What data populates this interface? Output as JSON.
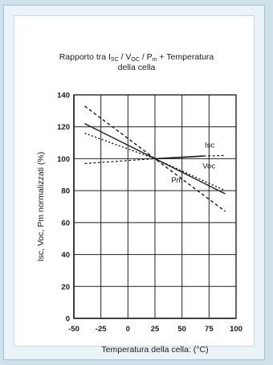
{
  "chart_data": {
    "type": "line",
    "title_line1_parts": [
      "Rapporto tra I",
      "SC",
      " / V",
      "OC",
      " / P",
      "m",
      " + Temperatura"
    ],
    "title_line2": "della cella",
    "xlabel": "Temperatura della cella: (°C)",
    "ylabel": "Isc, Voc, Pm normalizzati (%)",
    "xlim": [
      -50,
      100
    ],
    "ylim": [
      0,
      140
    ],
    "xticks": [
      -50,
      -25,
      0,
      25,
      50,
      75,
      100
    ],
    "xtick_labels": [
      "-50",
      "-25",
      "0",
      "25",
      "50",
      "75",
      "100"
    ],
    "yticks": [
      0,
      20,
      40,
      60,
      80,
      100,
      120,
      140
    ],
    "ytick_labels": [
      "0",
      "20",
      "40",
      "60",
      "80",
      "100",
      "120",
      "140"
    ],
    "grid": true,
    "series": [
      {
        "name": "Isc",
        "x": [
          -40,
          25,
          90
        ],
        "y": [
          97,
          100,
          102
        ],
        "dash": "solid-dashed"
      },
      {
        "name": "Voc",
        "x": [
          -40,
          25,
          90
        ],
        "y": [
          122,
          100,
          78
        ],
        "dash": "solid"
      },
      {
        "name": "Pm",
        "x": [
          -40,
          25,
          90
        ],
        "y": [
          133,
          100,
          67
        ],
        "dash": "dashed"
      },
      {
        "name": "",
        "x": [
          -40,
          25,
          90
        ],
        "y": [
          116,
          100,
          80
        ],
        "dash": "dotted"
      }
    ],
    "labels": [
      {
        "text": "Isc",
        "x": 71,
        "y": 107
      },
      {
        "text": "Voc",
        "x": 69,
        "y": 94
      },
      {
        "text": "Pm",
        "x": 40,
        "y": 85
      }
    ]
  },
  "colors": {
    "line": "#1a1a1a",
    "grid": "#222222",
    "panel": "#e9f3f8",
    "outer": "#cfe2ec"
  }
}
